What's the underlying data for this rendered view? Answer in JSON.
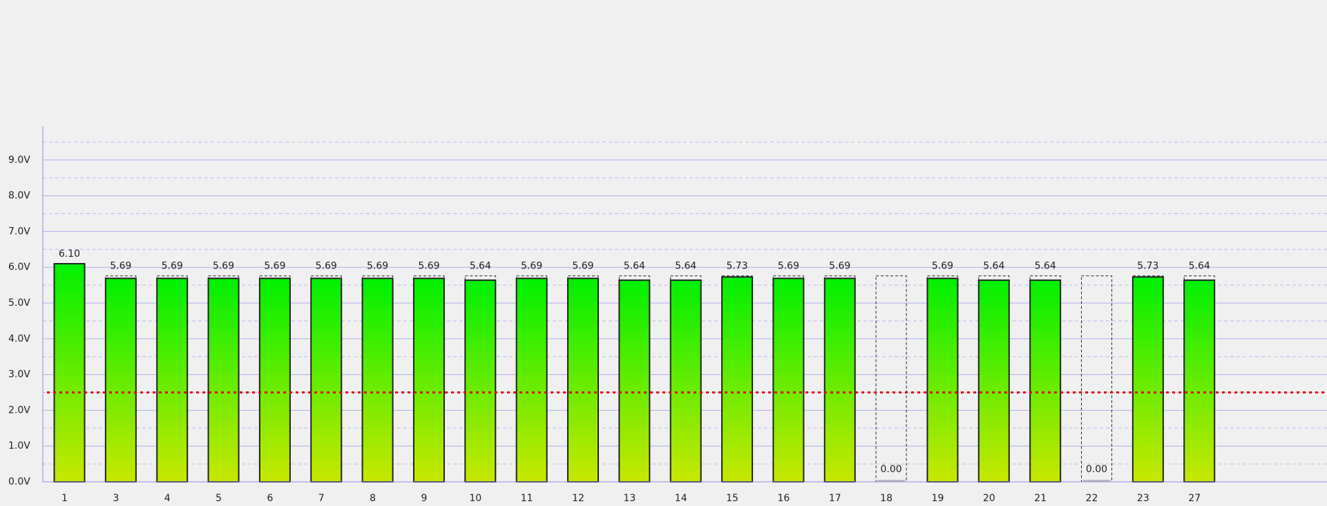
{
  "chart_data": {
    "type": "bar",
    "categories": [
      "1",
      "3",
      "4",
      "5",
      "6",
      "7",
      "8",
      "9",
      "10",
      "11",
      "12",
      "13",
      "14",
      "15",
      "16",
      "17",
      "18",
      "19",
      "20",
      "21",
      "22",
      "23",
      "27"
    ],
    "values": [
      6.1,
      5.69,
      5.69,
      5.69,
      5.69,
      5.69,
      5.69,
      5.69,
      5.64,
      5.69,
      5.69,
      5.64,
      5.64,
      5.73,
      5.69,
      5.69,
      0.0,
      5.69,
      5.64,
      5.64,
      0.0,
      5.73,
      5.64
    ],
    "value_labels": [
      "6.10",
      "5.69",
      "5.69",
      "5.69",
      "5.69",
      "5.69",
      "5.69",
      "5.69",
      "5.64",
      "5.69",
      "5.69",
      "5.64",
      "5.64",
      "5.73",
      "5.69",
      "5.69",
      "0.00",
      "5.69",
      "5.64",
      "5.64",
      "0.00",
      "5.73",
      "5.64"
    ],
    "color_top": "#00f000",
    "color_bottom": "#c8e800",
    "ylim": [
      0,
      10
    ],
    "yticks": [
      {
        "value": 0,
        "label": "0.0V"
      },
      {
        "value": 1,
        "label": "1.0V"
      },
      {
        "value": 2,
        "label": "2.0V"
      },
      {
        "value": 3,
        "label": "3.0V"
      },
      {
        "value": 4,
        "label": "4.0V"
      },
      {
        "value": 5,
        "label": "5.0V"
      },
      {
        "value": 6,
        "label": "6.0V"
      },
      {
        "value": 7,
        "label": "7.0V"
      },
      {
        "value": 8,
        "label": "8.0V"
      },
      {
        "value": 9,
        "label": "9.0V"
      }
    ],
    "minor_yticks": [
      0.5,
      1.5,
      2.5,
      3.5,
      4.5,
      5.5,
      6.5,
      7.5,
      8.5,
      9.5
    ],
    "threshold": 2.5,
    "reference_level": 5.76,
    "grid": true
  }
}
